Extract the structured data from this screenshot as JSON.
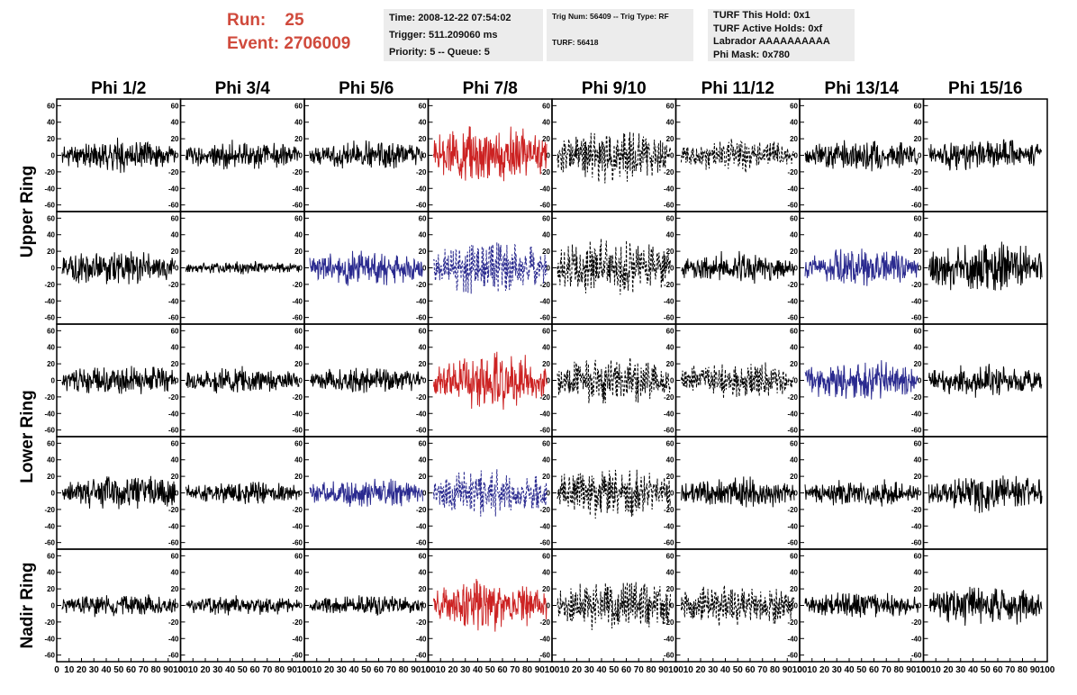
{
  "header": {
    "run_label": "Run:",
    "run_value": "25",
    "event_label": "Event:",
    "event_value": "2706009",
    "info1": {
      "time": "Time: 2008-12-22 07:54:02",
      "trigger": "Trigger: 511.209060 ms",
      "priority": "Priority: 5 -- Queue: 5"
    },
    "info2": {
      "trig": "Trig Num: 56409 -- Trig Type: RF",
      "turf": "TURF: 56418"
    },
    "info3": {
      "hold": "TURF This Hold: 0x1",
      "active": "TURF Active Holds: 0xf",
      "labrador": "Labrador AAAAAAAAAA",
      "phimask": "Phi Mask: 0x780"
    }
  },
  "chart_data": {
    "type": "line",
    "columns": [
      "Phi 1/2",
      "Phi 3/4",
      "Phi 5/6",
      "Phi 7/8",
      "Phi 9/10",
      "Phi 11/12",
      "Phi 13/14",
      "Phi 15/16"
    ],
    "rows": [
      "Upper Ring",
      "Lower Ring",
      "Nadir Ring"
    ],
    "yticks": [
      -60,
      -40,
      -20,
      0,
      20,
      40,
      60
    ],
    "ytick_labels": [
      "-60",
      "-40",
      "-20",
      "0",
      "20",
      "40",
      "60"
    ],
    "ylim": [
      -68,
      68
    ],
    "xlim": [
      0,
      100
    ],
    "xtick_labels": [
      "0",
      "10",
      "20",
      "30",
      "40",
      "50",
      "60",
      "70",
      "80",
      "90",
      "100"
    ],
    "grid": false,
    "colors": {
      "black": "#000000",
      "red": "#cc2222",
      "blue": "#2a2a8f"
    },
    "panels": [
      {
        "row": 0,
        "col": 0,
        "color": "black",
        "style": "solid",
        "amp": 12,
        "seed": 11
      },
      {
        "row": 0,
        "col": 1,
        "color": "black",
        "style": "solid",
        "amp": 11,
        "seed": 12
      },
      {
        "row": 0,
        "col": 2,
        "color": "black",
        "style": "solid",
        "amp": 11,
        "seed": 13
      },
      {
        "row": 0,
        "col": 3,
        "color": "red",
        "style": "solid",
        "amp": 22,
        "seed": 14
      },
      {
        "row": 0,
        "col": 4,
        "color": "black",
        "style": "dashed",
        "amp": 20,
        "seed": 15
      },
      {
        "row": 0,
        "col": 5,
        "color": "black",
        "style": "dashed",
        "amp": 12,
        "seed": 16
      },
      {
        "row": 0,
        "col": 6,
        "color": "black",
        "style": "solid",
        "amp": 12,
        "seed": 17
      },
      {
        "row": 0,
        "col": 7,
        "color": "black",
        "style": "solid",
        "amp": 13,
        "seed": 18
      },
      {
        "row": 1,
        "col": 0,
        "color": "black",
        "style": "solid",
        "amp": 14,
        "seed": 21
      },
      {
        "row": 1,
        "col": 1,
        "color": "black",
        "style": "solid",
        "amp": 5,
        "seed": 22
      },
      {
        "row": 1,
        "col": 2,
        "color": "blue",
        "style": "solid",
        "amp": 14,
        "seed": 23
      },
      {
        "row": 1,
        "col": 3,
        "color": "blue",
        "style": "dashed",
        "amp": 20,
        "seed": 24
      },
      {
        "row": 1,
        "col": 4,
        "color": "black",
        "style": "dashed",
        "amp": 22,
        "seed": 25
      },
      {
        "row": 1,
        "col": 5,
        "color": "black",
        "style": "solid",
        "amp": 12,
        "seed": 26
      },
      {
        "row": 1,
        "col": 6,
        "color": "blue",
        "style": "solid",
        "amp": 14,
        "seed": 27
      },
      {
        "row": 1,
        "col": 7,
        "color": "black",
        "style": "solid",
        "amp": 20,
        "seed": 28
      },
      {
        "row": 2,
        "col": 0,
        "color": "black",
        "style": "solid",
        "amp": 12,
        "seed": 31
      },
      {
        "row": 2,
        "col": 1,
        "color": "black",
        "style": "solid",
        "amp": 10,
        "seed": 32
      },
      {
        "row": 2,
        "col": 2,
        "color": "black",
        "style": "solid",
        "amp": 10,
        "seed": 33
      },
      {
        "row": 2,
        "col": 3,
        "color": "red",
        "style": "solid",
        "amp": 22,
        "seed": 34
      },
      {
        "row": 2,
        "col": 4,
        "color": "black",
        "style": "dashed",
        "amp": 18,
        "seed": 35
      },
      {
        "row": 2,
        "col": 5,
        "color": "black",
        "style": "dashed",
        "amp": 14,
        "seed": 36
      },
      {
        "row": 2,
        "col": 6,
        "color": "blue",
        "style": "solid",
        "amp": 16,
        "seed": 37
      },
      {
        "row": 2,
        "col": 7,
        "color": "black",
        "style": "solid",
        "amp": 12,
        "seed": 38
      },
      {
        "row": 3,
        "col": 0,
        "color": "black",
        "style": "solid",
        "amp": 14,
        "seed": 41
      },
      {
        "row": 3,
        "col": 1,
        "color": "black",
        "style": "solid",
        "amp": 9,
        "seed": 42
      },
      {
        "row": 3,
        "col": 2,
        "color": "blue",
        "style": "solid",
        "amp": 11,
        "seed": 43
      },
      {
        "row": 3,
        "col": 3,
        "color": "blue",
        "style": "dashed",
        "amp": 18,
        "seed": 44
      },
      {
        "row": 3,
        "col": 4,
        "color": "black",
        "style": "dashed",
        "amp": 20,
        "seed": 45
      },
      {
        "row": 3,
        "col": 5,
        "color": "black",
        "style": "solid",
        "amp": 12,
        "seed": 46
      },
      {
        "row": 3,
        "col": 6,
        "color": "black",
        "style": "solid",
        "amp": 10,
        "seed": 47
      },
      {
        "row": 3,
        "col": 7,
        "color": "black",
        "style": "solid",
        "amp": 16,
        "seed": 48
      },
      {
        "row": 4,
        "col": 0,
        "color": "black",
        "style": "solid",
        "amp": 9,
        "seed": 51
      },
      {
        "row": 4,
        "col": 1,
        "color": "black",
        "style": "solid",
        "amp": 8,
        "seed": 52
      },
      {
        "row": 4,
        "col": 2,
        "color": "black",
        "style": "solid",
        "amp": 8,
        "seed": 53
      },
      {
        "row": 4,
        "col": 3,
        "color": "red",
        "style": "solid",
        "amp": 20,
        "seed": 54
      },
      {
        "row": 4,
        "col": 4,
        "color": "black",
        "style": "dashed",
        "amp": 20,
        "seed": 55
      },
      {
        "row": 4,
        "col": 5,
        "color": "black",
        "style": "dashed",
        "amp": 16,
        "seed": 56
      },
      {
        "row": 4,
        "col": 6,
        "color": "black",
        "style": "solid",
        "amp": 10,
        "seed": 57
      },
      {
        "row": 4,
        "col": 7,
        "color": "black",
        "style": "solid",
        "amp": 16,
        "seed": 58
      }
    ]
  }
}
